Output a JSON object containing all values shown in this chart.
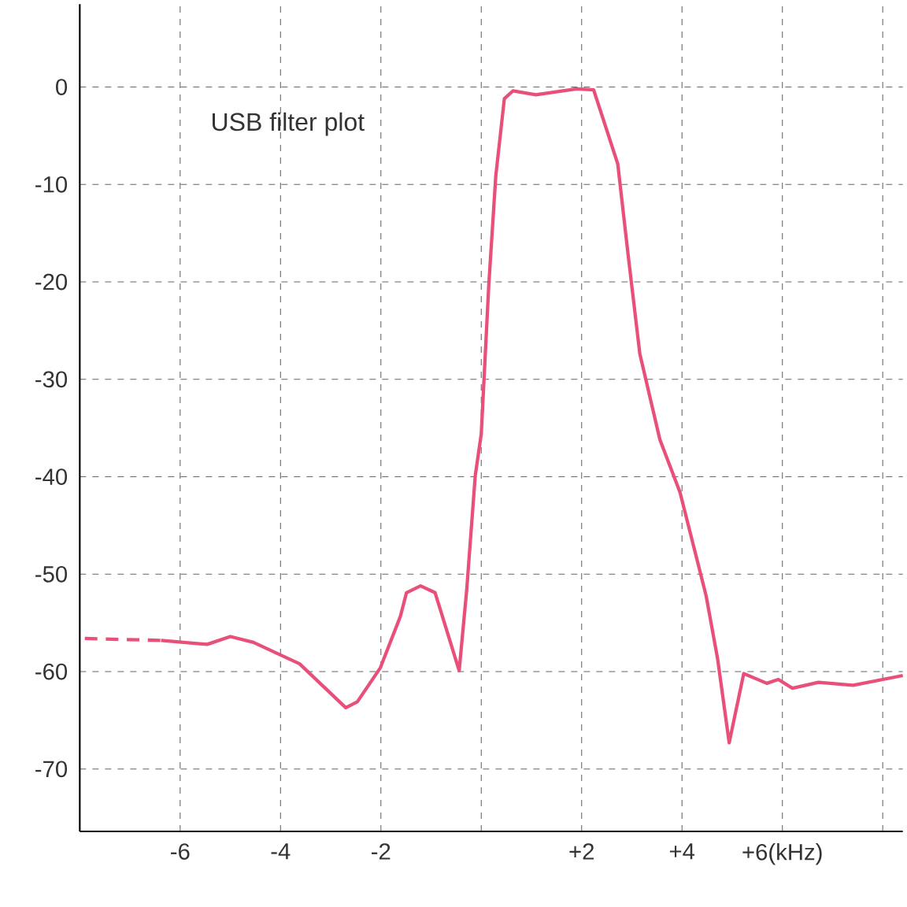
{
  "chart_data": {
    "type": "line",
    "annotations": [
      "USB  filter plot"
    ],
    "xlim": [
      -8,
      8.4
    ],
    "ylim": [
      -76.4,
      8.5
    ],
    "xticks": [
      -6,
      -4,
      -2,
      {
        "value": 0,
        "label": null
      },
      {
        "value": 2,
        "label": "+2"
      },
      {
        "value": 4,
        "label": "+4"
      },
      {
        "value": 6,
        "label": "+6(kHz)"
      },
      {
        "value": 8,
        "label": null
      }
    ],
    "yticks": [
      -70,
      -60,
      -50,
      -40,
      -30,
      -20,
      -10,
      0
    ],
    "grid": true,
    "series": [
      {
        "color": "#e8507a",
        "line_style": "dashed",
        "x": [
          -7.9,
          -6.38
        ],
        "values": [
          -56.6,
          -56.8
        ]
      },
      {
        "color": "#e8507a",
        "line_style": "solid",
        "x": [
          -6.38,
          -5.46,
          -5.0,
          -4.54,
          -3.62,
          -2.7,
          -2.47,
          -2.01,
          -1.61,
          -1.49,
          -1.21,
          -0.92,
          -0.44,
          -0.29,
          -0.12,
          0,
          0.15,
          0.29,
          0.46,
          0.63,
          1.09,
          1.9,
          2.24,
          2.72,
          2.93,
          3.16,
          3.56,
          3.96,
          4.48,
          4.71,
          4.94,
          5.23,
          5.69,
          5.92,
          6.2,
          6.72,
          7.41,
          8.4
        ],
        "values": [
          -56.8,
          -57.2,
          -56.4,
          -57.0,
          -59.2,
          -63.7,
          -63.1,
          -59.6,
          -54.3,
          -51.9,
          -51.2,
          -51.9,
          -59.9,
          -51.6,
          -39.9,
          -35.6,
          -20.3,
          -9.1,
          -1.2,
          -0.4,
          -0.8,
          -0.2,
          -0.3,
          -7.9,
          -17.4,
          -27.4,
          -36.2,
          -41.6,
          -52.2,
          -58.7,
          -67.3,
          -60.2,
          -61.2,
          -60.8,
          -61.7,
          -61.1,
          -61.4,
          -60.4
        ]
      }
    ]
  }
}
